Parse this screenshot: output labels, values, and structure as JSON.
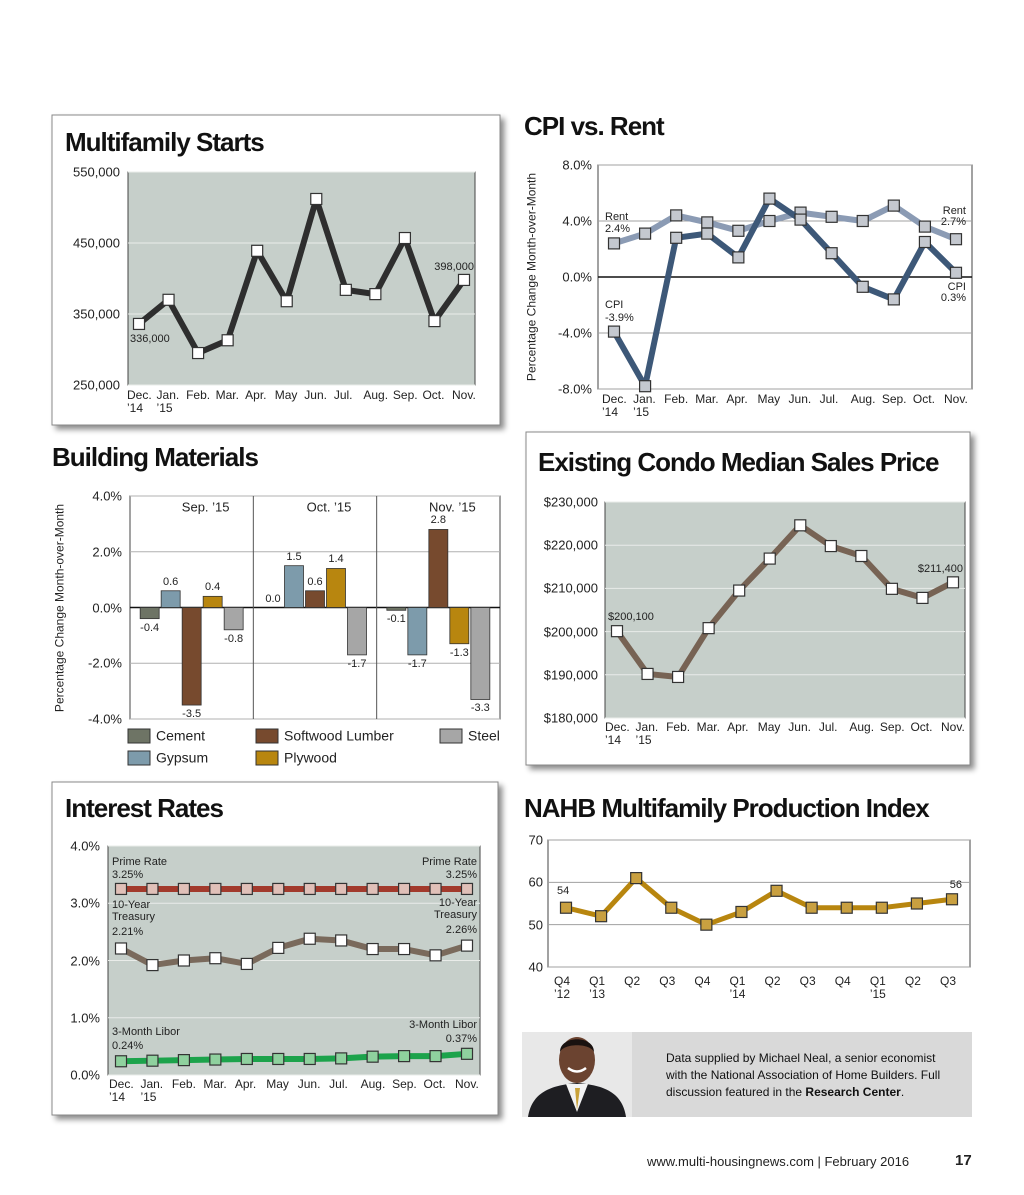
{
  "chart_data": [
    {
      "type": "line",
      "title": "Multifamily Starts",
      "categories": [
        "Dec.\n’14",
        "Jan.\n’15",
        "Feb.",
        "Mar.",
        "Apr.",
        "May",
        "Jun.",
        "Jul.",
        "Aug.",
        "Sep.",
        "Oct.",
        "Nov."
      ],
      "values": [
        336000,
        370000,
        295000,
        313000,
        439000,
        368000,
        512000,
        384000,
        378000,
        457000,
        340000,
        398000
      ],
      "value_labels": [
        "336,000",
        null,
        null,
        null,
        null,
        null,
        null,
        null,
        null,
        null,
        null,
        "398,000"
      ],
      "color": "#2e2e2e",
      "ylim": [
        250000,
        550000
      ],
      "yticks": [
        {
          "value": 250000,
          "label": "250,000"
        },
        {
          "value": 350000,
          "label": "350,000"
        },
        {
          "value": 450000,
          "label": "450,000"
        },
        {
          "value": 550000,
          "label": "550,000"
        }
      ],
      "grid": true
    },
    {
      "type": "line",
      "title": "CPI vs. Rent",
      "y_label": "Percentage Change Month-over-Month",
      "categories": [
        "Dec.\n’14",
        "Jan.\n’15",
        "Feb.",
        "Mar.",
        "Apr.",
        "May",
        "Jun.",
        "Jul.",
        "Aug.",
        "Sep.",
        "Oct.",
        "Nov."
      ],
      "series": [
        {
          "name": "Rent",
          "color": "#8b9bb4",
          "values": [
            2.4,
            3.1,
            4.4,
            3.9,
            3.3,
            4.0,
            4.6,
            4.3,
            4.0,
            5.1,
            3.6,
            2.7
          ],
          "value_labels": [
            "2.4%",
            null,
            null,
            null,
            null,
            null,
            null,
            null,
            null,
            null,
            null,
            "2.7%"
          ]
        },
        {
          "name": "CPI",
          "color": "#3d5878",
          "values": [
            -3.9,
            -7.8,
            2.8,
            3.1,
            1.4,
            5.6,
            4.1,
            1.7,
            -0.7,
            -1.6,
            2.5,
            0.3
          ],
          "value_labels": [
            "-3.9%",
            null,
            null,
            null,
            null,
            null,
            null,
            null,
            null,
            null,
            null,
            "0.3%"
          ]
        }
      ],
      "ylim": [
        -8,
        8
      ],
      "yticks": [
        {
          "value": -8,
          "label": "-8.0%"
        },
        {
          "value": -4,
          "label": "-4.0%"
        },
        {
          "value": 0,
          "label": "0.0%"
        },
        {
          "value": 4,
          "label": "4.0%"
        },
        {
          "value": 8,
          "label": "8.0%"
        }
      ],
      "grid": true
    },
    {
      "type": "bar",
      "title": "Building Materials",
      "y_label": "Percentage Change Month-over-Month",
      "categories": [
        "Sep. ’15",
        "Oct. ’15",
        "Nov. ’15"
      ],
      "series": [
        {
          "name": "Cement",
          "color": "#6e7465",
          "values": [
            -0.4,
            0.0,
            -0.1
          ],
          "value_labels": [
            "-0.4",
            "0.0",
            "-0.1"
          ]
        },
        {
          "name": "Gypsum",
          "color": "#7d9bab",
          "values": [
            0.6,
            1.5,
            -1.7
          ],
          "value_labels": [
            "0.6",
            "1.5",
            "-1.7"
          ]
        },
        {
          "name": "Softwood Lumber",
          "color": "#774a2e",
          "values": [
            -3.5,
            0.6,
            2.8
          ],
          "value_labels": [
            "-3.5",
            "0.6",
            "2.8"
          ]
        },
        {
          "name": "Plywood",
          "color": "#b8860f",
          "values": [
            0.4,
            1.4,
            -1.3
          ],
          "value_labels": [
            "0.4",
            "1.4",
            "-1.3"
          ]
        },
        {
          "name": "Steel",
          "color": "#a6a6a6",
          "values": [
            -0.8,
            -1.7,
            -3.3
          ],
          "value_labels": [
            "-0.8",
            "-1.7",
            "-3.3"
          ]
        }
      ],
      "ylim": [
        -4,
        4
      ],
      "yticks": [
        {
          "value": -4,
          "label": "-4.0%"
        },
        {
          "value": -2,
          "label": "-2.0%"
        },
        {
          "value": 0,
          "label": "0.0%"
        },
        {
          "value": 2,
          "label": "2.0%"
        },
        {
          "value": 4,
          "label": "4.0%"
        }
      ],
      "grid": true
    },
    {
      "type": "line",
      "title": "Existing Condo Median Sales Price",
      "categories": [
        "Dec.\n’14",
        "Jan.\n’15",
        "Feb.",
        "Mar.",
        "Apr.",
        "May",
        "Jun.",
        "Jul.",
        "Aug.",
        "Sep.",
        "Oct.",
        "Nov."
      ],
      "values": [
        200100,
        190200,
        189500,
        200800,
        209500,
        216900,
        224600,
        219800,
        217500,
        209900,
        207800,
        211400
      ],
      "value_labels": [
        "$200,100",
        null,
        null,
        null,
        null,
        null,
        null,
        null,
        null,
        null,
        null,
        "$211,400"
      ],
      "color": "#776354",
      "ylim": [
        180000,
        230000
      ],
      "yticks": [
        {
          "value": 180000,
          "label": "$180,000"
        },
        {
          "value": 190000,
          "label": "$190,000"
        },
        {
          "value": 200000,
          "label": "$200,000"
        },
        {
          "value": 210000,
          "label": "$210,000"
        },
        {
          "value": 220000,
          "label": "$220,000"
        },
        {
          "value": 230000,
          "label": "$230,000"
        }
      ],
      "grid": true
    },
    {
      "type": "line",
      "title": "Interest Rates",
      "categories": [
        "Dec.\n’14",
        "Jan.\n’15",
        "Feb.",
        "Mar.",
        "Apr.",
        "May",
        "Jun.",
        "Jul.",
        "Aug.",
        "Sep.",
        "Oct.",
        "Nov."
      ],
      "series": [
        {
          "name": "Prime Rate",
          "color": "#a23a2c",
          "values": [
            3.25,
            3.25,
            3.25,
            3.25,
            3.25,
            3.25,
            3.25,
            3.25,
            3.25,
            3.25,
            3.25,
            3.25
          ],
          "value_labels": [
            "3.25%",
            null,
            null,
            null,
            null,
            null,
            null,
            null,
            null,
            null,
            null,
            "3.25%"
          ]
        },
        {
          "name": "10-Year Treasury",
          "color": "#7a6a5c",
          "values": [
            2.21,
            1.92,
            2.0,
            2.04,
            1.94,
            2.22,
            2.38,
            2.35,
            2.2,
            2.2,
            2.09,
            2.26
          ],
          "value_labels": [
            "2.21%",
            null,
            null,
            null,
            null,
            null,
            null,
            null,
            null,
            null,
            null,
            "2.26%"
          ]
        },
        {
          "name": "3-Month Libor",
          "color": "#1ca34b",
          "values": [
            0.24,
            0.25,
            0.26,
            0.27,
            0.28,
            0.28,
            0.28,
            0.29,
            0.32,
            0.33,
            0.33,
            0.37
          ],
          "value_labels": [
            "0.24%",
            null,
            null,
            null,
            null,
            null,
            null,
            null,
            null,
            null,
            null,
            "0.37%"
          ]
        }
      ],
      "ylim": [
        0,
        4
      ],
      "yticks": [
        {
          "value": 0,
          "label": "0.0%"
        },
        {
          "value": 1,
          "label": "1.0%"
        },
        {
          "value": 2,
          "label": "2.0%"
        },
        {
          "value": 3,
          "label": "3.0%"
        },
        {
          "value": 4,
          "label": "4.0%"
        }
      ],
      "grid": true
    },
    {
      "type": "line",
      "title": "NAHB Multifamily Production Index",
      "categories": [
        "Q4\n’12",
        "Q1\n’13",
        "Q2",
        "Q3",
        "Q4",
        "Q1\n’14",
        "Q2",
        "Q3",
        "Q4",
        "Q1\n’15",
        "Q2",
        "Q3"
      ],
      "values": [
        54,
        52,
        61,
        54,
        50,
        53,
        58,
        54,
        54,
        54,
        55,
        56
      ],
      "value_labels": [
        "54",
        null,
        null,
        null,
        null,
        null,
        null,
        null,
        null,
        null,
        null,
        "56"
      ],
      "color": "#b8860f",
      "ylim": [
        40,
        70
      ],
      "yticks": [
        40,
        50,
        60,
        70
      ],
      "grid": true
    }
  ],
  "sidebar": {
    "text": "Data supplied by Michael Neal, a senior economist with the National Association of Home Builders. Full discussion featured in the ",
    "link": "Research Center",
    "end": "."
  },
  "footer": {
    "site": "www.multi-housingnews.com | February 2016",
    "page": "17"
  }
}
